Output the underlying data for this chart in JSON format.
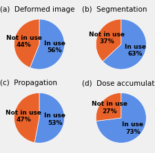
{
  "charts": [
    {
      "label": "(a)",
      "title": "Deformed image",
      "in_use": 56,
      "not_in_use": 44
    },
    {
      "label": "(b)",
      "title": "Segmentation",
      "in_use": 63,
      "not_in_use": 37
    },
    {
      "label": "(c)",
      "title": "Propagation",
      "in_use": 53,
      "not_in_use": 47
    },
    {
      "label": "(d)",
      "title": "Dose accumulation",
      "in_use": 73,
      "not_in_use": 27
    }
  ],
  "color_in_use": "#5B8EE6",
  "color_not_in_use": "#E8622A",
  "background_color": "#F0F0F0",
  "title_fontsize": 7.5,
  "pct_fontsize": 6.5,
  "label_italic_fontsize": 7.5
}
